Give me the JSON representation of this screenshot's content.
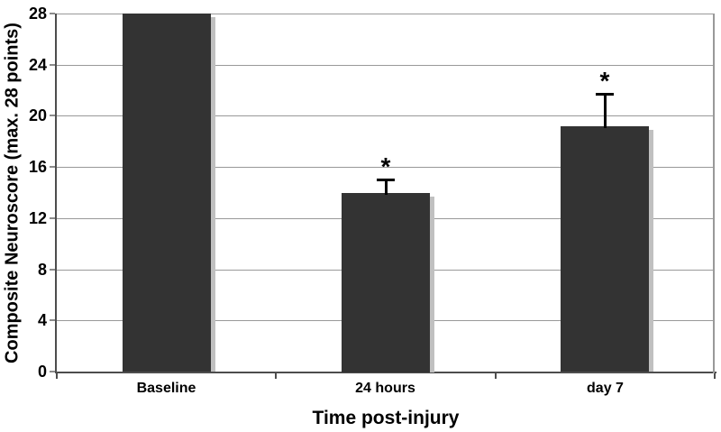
{
  "chart_data": {
    "type": "bar",
    "title": "",
    "categories": [
      "Baseline",
      "24 hours",
      "day 7"
    ],
    "values": [
      28,
      14,
      19.2
    ],
    "error_plus": [
      0,
      1,
      2.5
    ],
    "significance_markers": [
      "",
      "*",
      "*"
    ],
    "xlabel": "Time post-injury",
    "ylabel": "Composite Neuroscore (max. 28 points)",
    "ylim": [
      0,
      28
    ],
    "yticks": [
      0,
      4,
      8,
      12,
      16,
      20,
      24,
      28
    ],
    "grid": "horizontal-major",
    "legend": "none",
    "bar_color": "#333333",
    "bar_shadow_color": "#c0c0c0",
    "gridline_color": "#999999",
    "axis_color": "#4d4d4d",
    "background": "#ffffff"
  }
}
